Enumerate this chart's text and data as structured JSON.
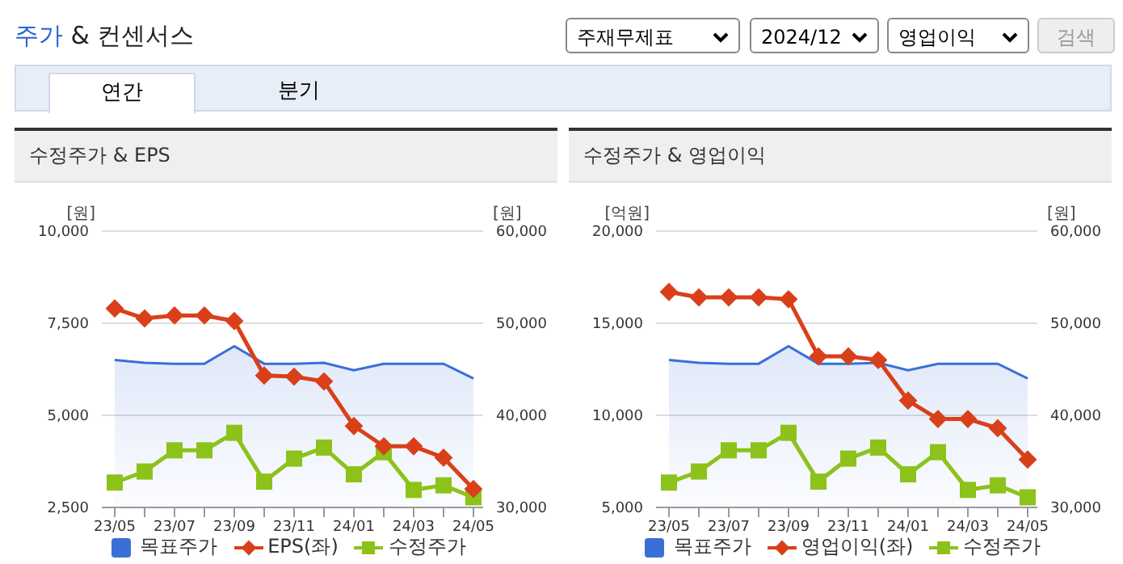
{
  "chart_data": [
    {
      "type": "other",
      "title": "주가 & 컨센서스",
      "annotations": [
        "주재무제표",
        "2024/12",
        "영업이익",
        "검색",
        "연간",
        "분기"
      ]
    },
    {
      "type": "line",
      "title": "수정주가 & EPS",
      "categories": [
        "23/05",
        null,
        "23/07",
        null,
        "23/09",
        null,
        "23/11",
        null,
        "24/01",
        null,
        "24/03",
        null,
        "24/05"
      ],
      "ylabel": "[원]",
      "y2label": "[원]",
      "ylim": [
        2500,
        10000
      ],
      "yticks": [
        {
          "value": 2500,
          "label": "2,500"
        },
        {
          "value": 5000,
          "label": "5,000"
        },
        {
          "value": 7500,
          "label": "7,500"
        },
        {
          "value": 10000,
          "label": "10,000"
        }
      ],
      "y2lim": [
        30000,
        60000
      ],
      "y2ticks": [
        {
          "value": 30000,
          "label": "30,000"
        },
        {
          "value": 40000,
          "label": "40,000"
        },
        {
          "value": 50000,
          "label": "50,000"
        },
        {
          "value": 60000,
          "label": "60,000"
        }
      ],
      "grid": "y",
      "legend": "bottom",
      "series": [
        {
          "name": "목표주가",
          "type": "area",
          "axis": "y2",
          "color": "#3a6fd8",
          "marker": "none",
          "values": [
            46000,
            45700,
            45600,
            45600,
            47500,
            45600,
            45600,
            45700,
            44900,
            45600,
            45600,
            45600,
            44000
          ]
        },
        {
          "name": "EPS(좌)",
          "type": "line",
          "color": "#d9401a",
          "marker": "diamond",
          "values": [
            7900,
            7630,
            7710,
            7710,
            7560,
            6080,
            6050,
            5920,
            4710,
            4160,
            4160,
            3850,
            3000
          ]
        },
        {
          "name": "수정주가",
          "type": "line",
          "axis": "y2",
          "color": "#8cc21a",
          "marker": "square",
          "values": [
            32700,
            33900,
            36200,
            36200,
            38100,
            32800,
            35300,
            36500,
            33600,
            36000,
            31900,
            32400,
            31100
          ]
        }
      ]
    },
    {
      "type": "line",
      "title": "수정주가 & 영업이익",
      "categories": [
        "23/05",
        null,
        "23/07",
        null,
        "23/09",
        null,
        "23/11",
        null,
        "24/01",
        null,
        "24/03",
        null,
        "24/05"
      ],
      "ylabel": "[억원]",
      "y2label": "[원]",
      "ylim": [
        5000,
        20000
      ],
      "yticks": [
        {
          "value": 5000,
          "label": "5,000"
        },
        {
          "value": 10000,
          "label": "10,000"
        },
        {
          "value": 15000,
          "label": "15,000"
        },
        {
          "value": 20000,
          "label": "20,000"
        }
      ],
      "y2lim": [
        30000,
        60000
      ],
      "y2ticks": [
        {
          "value": 30000,
          "label": "30,000"
        },
        {
          "value": 40000,
          "label": "40,000"
        },
        {
          "value": 50000,
          "label": "50,000"
        },
        {
          "value": 60000,
          "label": "60,000"
        }
      ],
      "grid": "y",
      "legend": "bottom",
      "series": [
        {
          "name": "목표주가",
          "type": "area",
          "axis": "y2",
          "color": "#3a6fd8",
          "marker": "none",
          "values": [
            46000,
            45700,
            45600,
            45600,
            47500,
            45600,
            45600,
            45700,
            44900,
            45600,
            45600,
            45600,
            44000
          ]
        },
        {
          "name": "영업이익(좌)",
          "type": "line",
          "color": "#d9401a",
          "marker": "diamond",
          "values": [
            16700,
            16400,
            16400,
            16400,
            16300,
            13200,
            13200,
            13000,
            10800,
            9800,
            9800,
            9300,
            7600
          ]
        },
        {
          "name": "수정주가",
          "type": "line",
          "axis": "y2",
          "color": "#8cc21a",
          "marker": "square",
          "values": [
            32700,
            33900,
            36200,
            36200,
            38100,
            32800,
            35300,
            36500,
            33600,
            36000,
            31900,
            32400,
            31100
          ]
        }
      ]
    }
  ]
}
